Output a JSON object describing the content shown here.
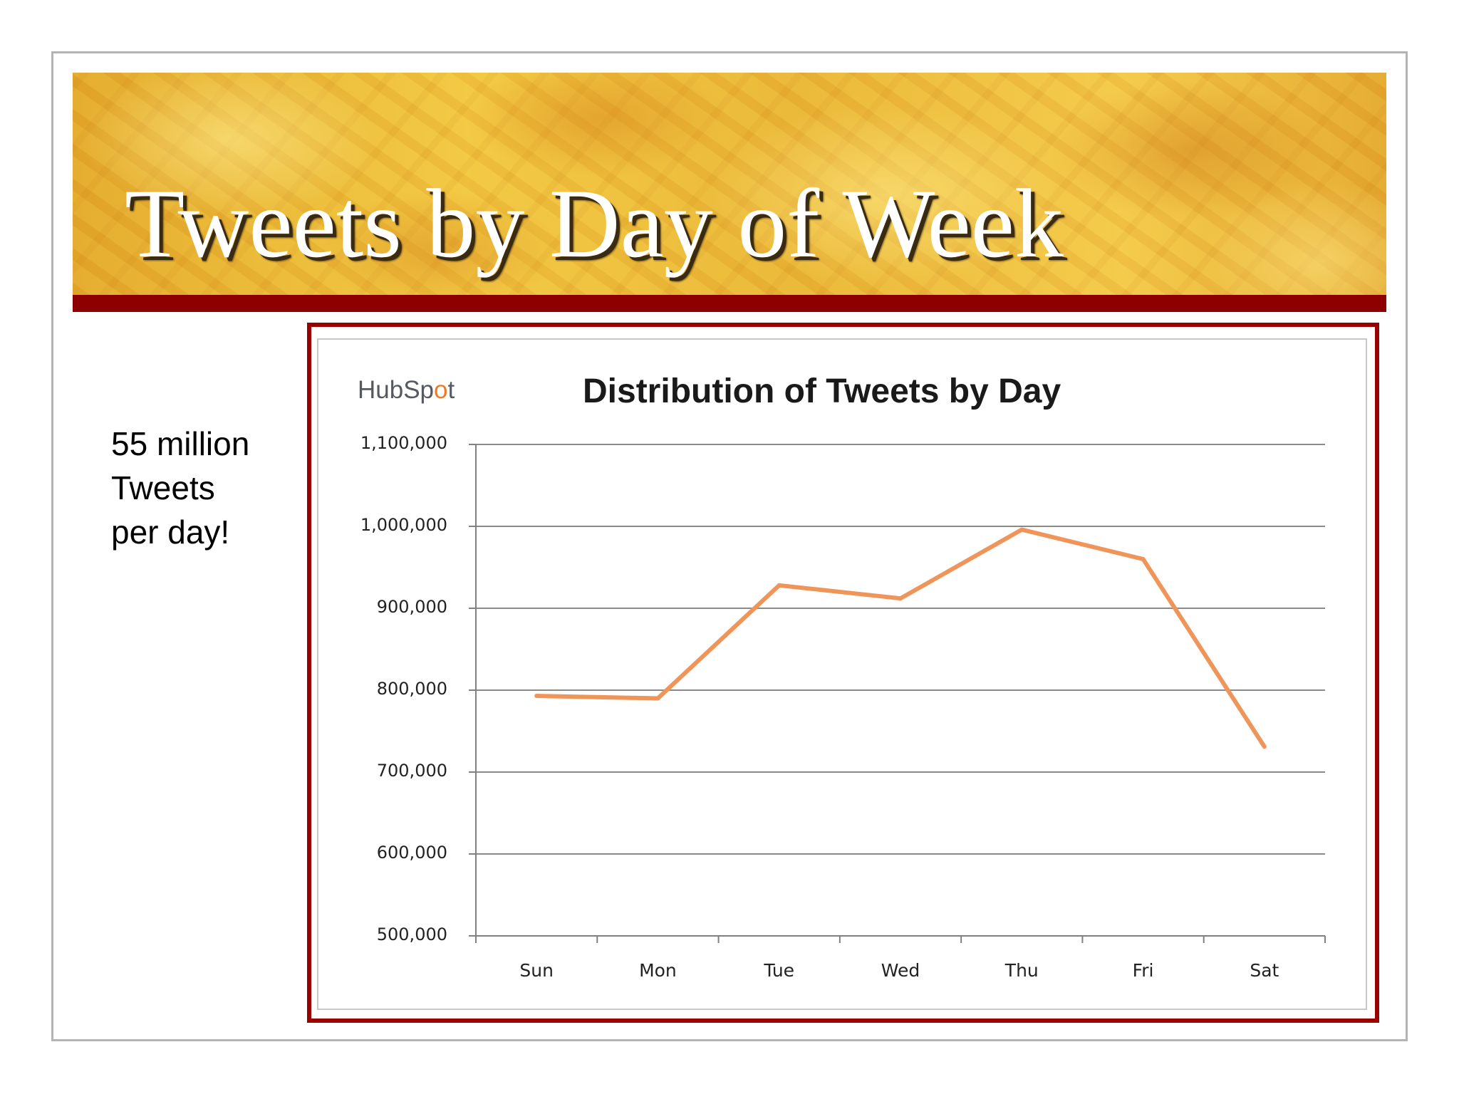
{
  "slide": {
    "title": "Tweets by Day of Week",
    "side_text": [
      "55 million",
      "Tweets",
      "per day!"
    ]
  },
  "logo": {
    "text_before": "HubSp",
    "text_mark": "o",
    "text_after": "t"
  },
  "colors": {
    "accent_dark_red": "#8e0000",
    "line_orange": "#f0955a",
    "logo_orange": "#f07a22"
  },
  "chart_data": {
    "type": "line",
    "title": "Distribution of Tweets by Day",
    "xlabel": "",
    "ylabel": "",
    "categories": [
      "Sun",
      "Mon",
      "Tue",
      "Wed",
      "Thu",
      "Fri",
      "Sat"
    ],
    "series": [
      {
        "values": [
          793000,
          790000,
          928000,
          912000,
          996000,
          960000,
          731000
        ]
      }
    ],
    "ylim": [
      500000,
      1100000
    ],
    "yticks": [
      1100000,
      1000000,
      900000,
      800000,
      700000,
      600000,
      500000
    ],
    "ytick_labels": [
      "1,100,000",
      "1,000,000",
      "900,000",
      "800,000",
      "700,000",
      "600,000",
      "500,000"
    ],
    "grid": true,
    "legend": "none"
  }
}
